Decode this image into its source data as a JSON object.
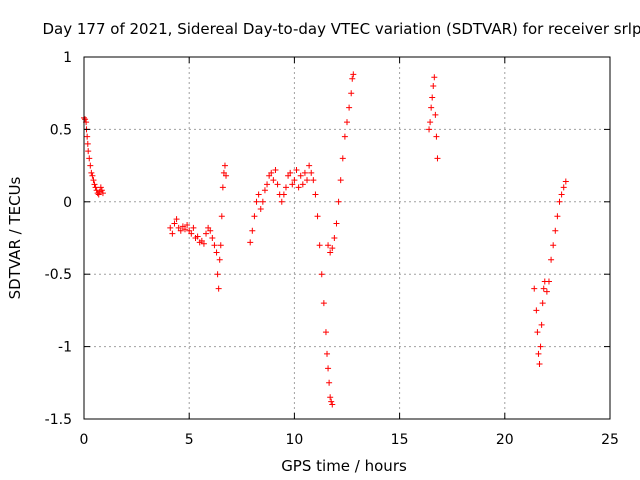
{
  "chart_data": {
    "type": "scatter",
    "title": "Day 177 of 2021, Sidereal Day-to-day VTEC variation (SDTVAR) for receiver srlp",
    "xlabel": "GPS time / hours",
    "ylabel": "SDTVAR / TECUs",
    "xlim": [
      0,
      25
    ],
    "ylim": [
      -1.5,
      1
    ],
    "xticks": [
      0,
      5,
      10,
      15,
      20,
      25
    ],
    "xtick_labels": [
      "0",
      "5",
      "10",
      "15",
      "20",
      "25"
    ],
    "yticks": [
      1,
      0.5,
      0,
      -0.5,
      -1,
      -1.5
    ],
    "ytick_labels": [
      "1",
      "0.5",
      "0",
      "-0.5",
      "-1",
      "-1.5"
    ],
    "grid": true,
    "marker": "+",
    "marker_color": "#ff0000",
    "series": [
      {
        "name": "SDTVAR",
        "points": [
          [
            0.0,
            0.58
          ],
          [
            0.05,
            0.57
          ],
          [
            0.1,
            0.55
          ],
          [
            0.12,
            0.5
          ],
          [
            0.15,
            0.45
          ],
          [
            0.18,
            0.4
          ],
          [
            0.2,
            0.35
          ],
          [
            0.25,
            0.3
          ],
          [
            0.3,
            0.25
          ],
          [
            0.35,
            0.2
          ],
          [
            0.4,
            0.18
          ],
          [
            0.45,
            0.15
          ],
          [
            0.5,
            0.12
          ],
          [
            0.55,
            0.1
          ],
          [
            0.6,
            0.08
          ],
          [
            0.65,
            0.06
          ],
          [
            0.7,
            0.05
          ],
          [
            0.75,
            0.07
          ],
          [
            0.8,
            0.1
          ],
          [
            0.85,
            0.08
          ],
          [
            0.9,
            0.06
          ],
          [
            4.1,
            -0.18
          ],
          [
            4.2,
            -0.22
          ],
          [
            4.3,
            -0.15
          ],
          [
            4.4,
            -0.12
          ],
          [
            4.5,
            -0.18
          ],
          [
            4.6,
            -0.2
          ],
          [
            4.7,
            -0.17
          ],
          [
            4.8,
            -0.19
          ],
          [
            4.9,
            -0.16
          ],
          [
            5.0,
            -0.2
          ],
          [
            5.1,
            -0.22
          ],
          [
            5.2,
            -0.18
          ],
          [
            5.3,
            -0.25
          ],
          [
            5.4,
            -0.24
          ],
          [
            5.5,
            -0.28
          ],
          [
            5.6,
            -0.27
          ],
          [
            5.7,
            -0.29
          ],
          [
            5.8,
            -0.22
          ],
          [
            5.9,
            -0.18
          ],
          [
            6.0,
            -0.2
          ],
          [
            6.1,
            -0.25
          ],
          [
            6.2,
            -0.3
          ],
          [
            6.3,
            -0.35
          ],
          [
            6.35,
            -0.5
          ],
          [
            6.4,
            -0.6
          ],
          [
            6.45,
            -0.4
          ],
          [
            6.5,
            -0.3
          ],
          [
            6.55,
            -0.1
          ],
          [
            6.6,
            0.1
          ],
          [
            6.65,
            0.2
          ],
          [
            6.7,
            0.25
          ],
          [
            6.75,
            0.18
          ],
          [
            7.9,
            -0.28
          ],
          [
            8.0,
            -0.2
          ],
          [
            8.1,
            -0.1
          ],
          [
            8.2,
            0.0
          ],
          [
            8.3,
            0.05
          ],
          [
            8.4,
            -0.05
          ],
          [
            8.5,
            0.0
          ],
          [
            8.6,
            0.08
          ],
          [
            8.7,
            0.12
          ],
          [
            8.8,
            0.18
          ],
          [
            8.9,
            0.2
          ],
          [
            9.0,
            0.15
          ],
          [
            9.1,
            0.22
          ],
          [
            9.2,
            0.12
          ],
          [
            9.3,
            0.05
          ],
          [
            9.4,
            0.0
          ],
          [
            9.5,
            0.05
          ],
          [
            9.6,
            0.1
          ],
          [
            9.7,
            0.18
          ],
          [
            9.8,
            0.2
          ],
          [
            9.9,
            0.12
          ],
          [
            10.0,
            0.15
          ],
          [
            10.1,
            0.22
          ],
          [
            10.2,
            0.1
          ],
          [
            10.3,
            0.18
          ],
          [
            10.4,
            0.12
          ],
          [
            10.5,
            0.2
          ],
          [
            10.6,
            0.15
          ],
          [
            10.7,
            0.25
          ],
          [
            10.8,
            0.2
          ],
          [
            10.9,
            0.15
          ],
          [
            11.0,
            0.05
          ],
          [
            11.1,
            -0.1
          ],
          [
            11.2,
            -0.3
          ],
          [
            11.3,
            -0.5
          ],
          [
            11.4,
            -0.7
          ],
          [
            11.5,
            -0.9
          ],
          [
            11.55,
            -1.05
          ],
          [
            11.6,
            -1.15
          ],
          [
            11.65,
            -1.25
          ],
          [
            11.7,
            -1.35
          ],
          [
            11.75,
            -1.38
          ],
          [
            11.8,
            -1.4
          ],
          [
            11.6,
            -0.3
          ],
          [
            11.7,
            -0.35
          ],
          [
            11.8,
            -0.32
          ],
          [
            11.9,
            -0.25
          ],
          [
            12.0,
            -0.15
          ],
          [
            12.1,
            0.0
          ],
          [
            12.2,
            0.15
          ],
          [
            12.3,
            0.3
          ],
          [
            12.4,
            0.45
          ],
          [
            12.5,
            0.55
          ],
          [
            12.6,
            0.65
          ],
          [
            12.7,
            0.75
          ],
          [
            12.75,
            0.85
          ],
          [
            12.8,
            0.88
          ],
          [
            16.4,
            0.5
          ],
          [
            16.45,
            0.55
          ],
          [
            16.5,
            0.65
          ],
          [
            16.55,
            0.72
          ],
          [
            16.6,
            0.8
          ],
          [
            16.65,
            0.86
          ],
          [
            16.7,
            0.6
          ],
          [
            16.75,
            0.45
          ],
          [
            16.8,
            0.3
          ],
          [
            21.4,
            -0.6
          ],
          [
            21.5,
            -0.75
          ],
          [
            21.55,
            -0.9
          ],
          [
            21.6,
            -1.05
          ],
          [
            21.65,
            -1.12
          ],
          [
            21.7,
            -1.0
          ],
          [
            21.75,
            -0.85
          ],
          [
            21.8,
            -0.7
          ],
          [
            21.85,
            -0.6
          ],
          [
            21.9,
            -0.55
          ],
          [
            22.0,
            -0.62
          ],
          [
            22.1,
            -0.55
          ],
          [
            22.2,
            -0.4
          ],
          [
            22.3,
            -0.3
          ],
          [
            22.4,
            -0.2
          ],
          [
            22.5,
            -0.1
          ],
          [
            22.6,
            0.0
          ],
          [
            22.7,
            0.05
          ],
          [
            22.8,
            0.1
          ],
          [
            22.9,
            0.14
          ]
        ]
      }
    ]
  }
}
